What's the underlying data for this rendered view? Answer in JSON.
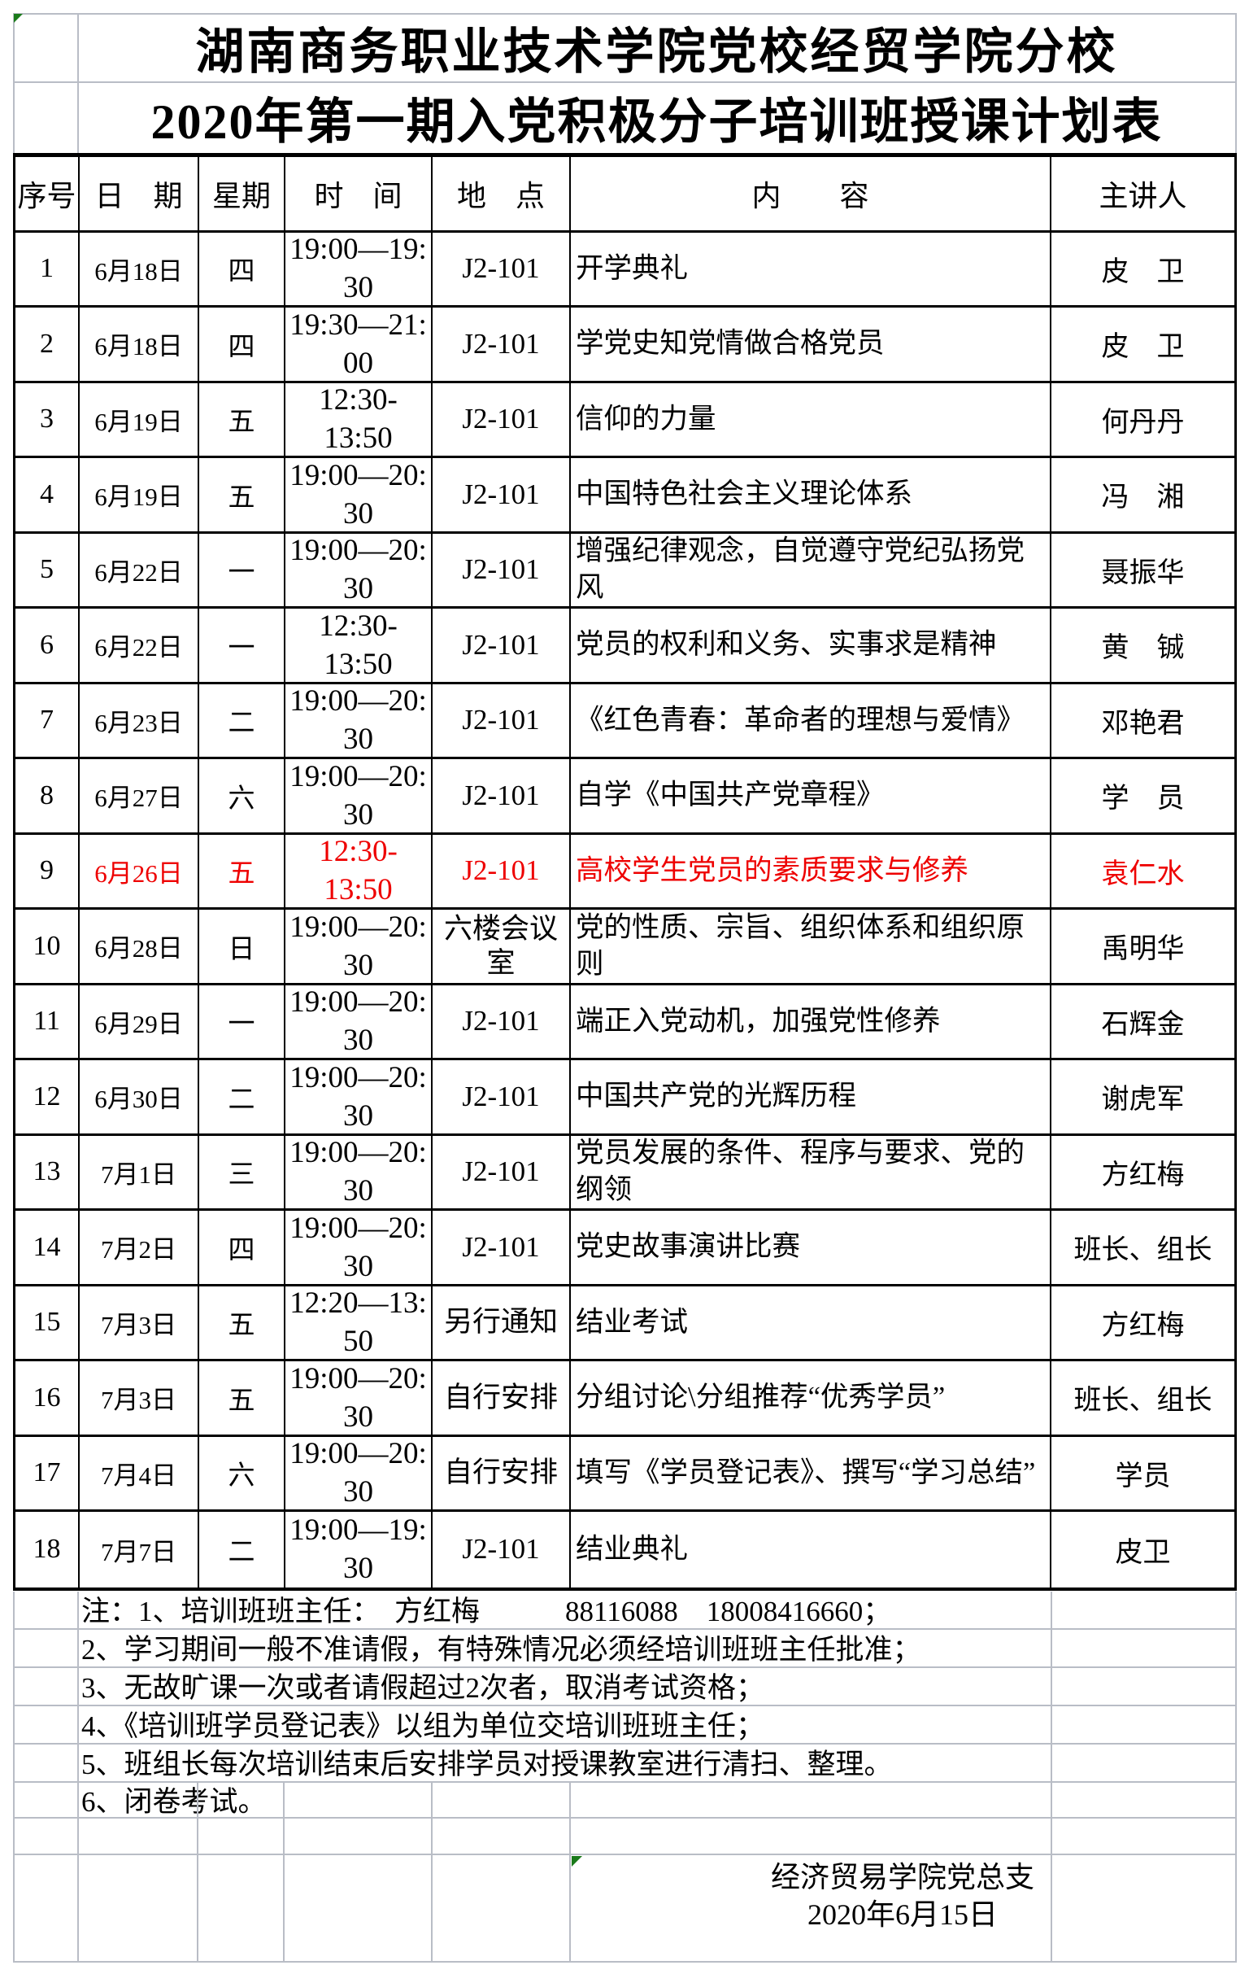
{
  "colors": {
    "red": "#ee0000",
    "green": "#1a7a1a",
    "grid": "#b9bdc6"
  },
  "title": {
    "line1": "湖南商务职业技术学院党校经贸学院分校",
    "line2": "2020年第一期入党积极分子培训班授课计划表"
  },
  "table": {
    "headers": [
      "序号",
      "日　期",
      "星期",
      "时　间",
      "地　点",
      "内　　容",
      "主讲人"
    ],
    "rows": [
      {
        "no": "1",
        "date": "6月18日",
        "weekday": "四",
        "time1": "19:00—19:",
        "time2": "30",
        "location": "J2-101",
        "content": "开学典礼",
        "speaker": "皮　卫",
        "red": false
      },
      {
        "no": "2",
        "date": "6月18日",
        "weekday": "四",
        "time1": "19:30—21:",
        "time2": "00",
        "location": "J2-101",
        "content": "学党史知党情做合格党员",
        "speaker": "皮　卫",
        "red": false
      },
      {
        "no": "3",
        "date": "6月19日",
        "weekday": "五",
        "time1": "12:30-",
        "time2": "13:50",
        "location": "J2-101",
        "content": "信仰的力量",
        "speaker": "何丹丹",
        "red": false
      },
      {
        "no": "4",
        "date": "6月19日",
        "weekday": "五",
        "time1": "19:00—20:",
        "time2": "30",
        "location": "J2-101",
        "content": "中国特色社会主义理论体系",
        "speaker": "冯　湘",
        "red": false
      },
      {
        "no": "5",
        "date": "6月22日",
        "weekday": "一",
        "time1": "19:00—20:",
        "time2": "30",
        "location": "J2-101",
        "content": "增强纪律观念，自觉遵守党纪弘扬党风",
        "speaker": "聂振华",
        "red": false
      },
      {
        "no": "6",
        "date": "6月22日",
        "weekday": "一",
        "time1": "12:30-",
        "time2": "13:50",
        "location": "J2-101",
        "content": "党员的权利和义务、实事求是精神",
        "speaker": "黄　铖",
        "red": false
      },
      {
        "no": "7",
        "date": "6月23日",
        "weekday": "二",
        "time1": "19:00—20:",
        "time2": "30",
        "location": "J2-101",
        "content": "《红色青春：革命者的理想与爱情》",
        "speaker": "邓艳君",
        "red": false
      },
      {
        "no": "8",
        "date": "6月27日",
        "weekday": "六",
        "time1": "19:00—20:",
        "time2": "30",
        "location": "J2-101",
        "content": "自学《中国共产党章程》",
        "speaker": "学　员",
        "red": false
      },
      {
        "no": "9",
        "date": "6月26日",
        "weekday": "五",
        "time1": "12:30-",
        "time2": "13:50",
        "location": "J2-101",
        "content": "高校学生党员的素质要求与修养",
        "speaker": "袁仁水",
        "red": true
      },
      {
        "no": "10",
        "date": "6月28日",
        "weekday": "日",
        "time1": "19:00—20:",
        "time2": "30",
        "location": "六楼会议室",
        "content": "党的性质、宗旨、组织体系和组织原则",
        "speaker": "禹明华",
        "red": false
      },
      {
        "no": "11",
        "date": "6月29日",
        "weekday": "一",
        "time1": "19:00—20:",
        "time2": "30",
        "location": "J2-101",
        "content": "端正入党动机，加强党性修养",
        "speaker": "石辉金",
        "red": false
      },
      {
        "no": "12",
        "date": "6月30日",
        "weekday": "二",
        "time1": "19:00—20:",
        "time2": "30",
        "location": "J2-101",
        "content": "中国共产党的光辉历程",
        "speaker": "谢虎军",
        "red": false
      },
      {
        "no": "13",
        "date": "7月1日",
        "weekday": "三",
        "time1": "19:00—20:",
        "time2": "30",
        "location": "J2-101",
        "content": "党员发展的条件、程序与要求、党的纲领",
        "speaker": "方红梅",
        "red": false
      },
      {
        "no": "14",
        "date": "7月2日",
        "weekday": "四",
        "time1": "19:00—20:",
        "time2": "30",
        "location": "J2-101",
        "content": "党史故事演讲比赛",
        "speaker": "班长、组长",
        "red": false
      },
      {
        "no": "15",
        "date": "7月3日",
        "weekday": "五",
        "time1": "12:20—13:",
        "time2": "50",
        "location": "另行通知",
        "content": "结业考试",
        "speaker": "方红梅",
        "red": false
      },
      {
        "no": "16",
        "date": "7月3日",
        "weekday": "五",
        "time1": "19:00—20:",
        "time2": "30",
        "location": "自行安排",
        "content": "分组讨论\\分组推荐“优秀学员”",
        "speaker": "班长、组长",
        "red": false
      },
      {
        "no": "17",
        "date": "7月4日",
        "weekday": "六",
        "time1": "19:00—20:",
        "time2": "30",
        "location": "自行安排",
        "content": "填写《学员登记表》、撰写“学习总结”",
        "speaker": "学员",
        "red": false
      },
      {
        "no": "18",
        "date": "7月7日",
        "weekday": "二",
        "time1": "19:00—19:",
        "time2": "30",
        "location": "J2-101",
        "content": "结业典礼",
        "speaker": "皮卫",
        "red": false
      }
    ]
  },
  "notes": [
    "注：1、培训班班主任：　方红梅　　　88116088　18008416660；",
    "2、学习期间一般不准请假，有特殊情况必须经培训班班主任批准；",
    "3、无故旷课一次或者请假超过2次者，取消考试资格；",
    "4、《培训班学员登记表》以组为单位交培训班班主任；",
    "5、班组长每次培训结束后安排学员对授课教室进行清扫、整理。",
    "6、闭卷考试。"
  ],
  "signature": {
    "line1": "经济贸易学院党总支",
    "line2": "2020年6月15日"
  }
}
